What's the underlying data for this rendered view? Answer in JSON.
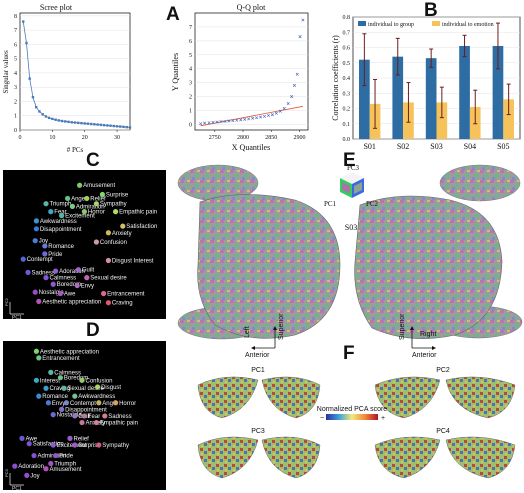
{
  "panels": {
    "A": "A",
    "B": "B",
    "C": "C",
    "D": "D",
    "E": "E",
    "F": "F"
  },
  "chart_data": [
    {
      "id": "scree",
      "type": "line",
      "title": "Scree plot",
      "xlabel": "# PCs",
      "ylabel": "Singular values",
      "xlim": [
        0,
        34
      ],
      "ylim": [
        0,
        8.2
      ],
      "xticks": [
        "0",
        "10",
        "20",
        "30"
      ],
      "xtick_values": [
        0,
        10,
        20,
        30
      ],
      "yticks": [
        "0",
        "1",
        "2",
        "3",
        "4",
        "5",
        "6",
        "7",
        "8"
      ],
      "ytick_values": [
        0,
        1,
        2,
        3,
        4,
        5,
        6,
        7,
        8
      ],
      "x": [
        1,
        2,
        3,
        4,
        5,
        6,
        7,
        8,
        9,
        10,
        11,
        12,
        13,
        14,
        15,
        16,
        17,
        18,
        19,
        20,
        21,
        22,
        23,
        24,
        25,
        26,
        27,
        28,
        29,
        30,
        31,
        32,
        33,
        34
      ],
      "values": [
        7.6,
        6.1,
        3.6,
        2.3,
        1.6,
        1.3,
        1.1,
        0.95,
        0.85,
        0.78,
        0.72,
        0.67,
        0.63,
        0.6,
        0.57,
        0.54,
        0.52,
        0.5,
        0.48,
        0.46,
        0.44,
        0.42,
        0.4,
        0.38,
        0.36,
        0.34,
        0.32,
        0.3,
        0.28,
        0.26,
        0.24,
        0.22,
        0.2,
        0.18
      ]
    },
    {
      "id": "qq",
      "type": "scatter",
      "title": "Q-Q plot",
      "xlabel": "X Quantiles",
      "ylabel": "Y Quantiles",
      "xlim": [
        2715,
        2915
      ],
      "ylim": [
        -0.4,
        8.0
      ],
      "xticks": [
        "2750",
        "2800",
        "2850",
        "2900"
      ],
      "xtick_values": [
        2750,
        2800,
        2850,
        2900
      ],
      "yticks": [
        "0",
        "1",
        "2",
        "3",
        "4",
        "5",
        "6",
        "7"
      ],
      "ytick_values": [
        0,
        1,
        2,
        3,
        4,
        5,
        6,
        7
      ],
      "x": [
        2725,
        2732,
        2740,
        2747,
        2754,
        2761,
        2768,
        2775,
        2782,
        2789,
        2796,
        2803,
        2810,
        2817,
        2824,
        2831,
        2838,
        2845,
        2852,
        2859,
        2866,
        2873,
        2880,
        2886,
        2891,
        2896,
        2901,
        2906
      ],
      "y": [
        0.05,
        0.1,
        0.12,
        0.15,
        0.17,
        0.2,
        0.22,
        0.25,
        0.27,
        0.3,
        0.33,
        0.36,
        0.4,
        0.44,
        0.48,
        0.53,
        0.58,
        0.64,
        0.7,
        0.8,
        0.95,
        1.15,
        1.5,
        2.0,
        2.8,
        3.6,
        6.3,
        7.5
      ],
      "ref_line": {
        "x": [
          2725,
          2906
        ],
        "y": [
          -0.1,
          1.3
        ]
      }
    },
    {
      "id": "corr",
      "type": "bar",
      "categories": [
        "S01",
        "S02",
        "S03",
        "S04",
        "S05"
      ],
      "ylabel": "Correlation coefficients (r)",
      "ylim": [
        0,
        0.8
      ],
      "yticks": [
        "0.0",
        "0.1",
        "0.2",
        "0.3",
        "0.4",
        "0.5",
        "0.6",
        "0.7",
        "0.8"
      ],
      "ytick_values": [
        0,
        0.1,
        0.2,
        0.3,
        0.4,
        0.5,
        0.6,
        0.7,
        0.8
      ],
      "legend_position": "top",
      "series": [
        {
          "name": "individual to group",
          "values": [
            0.52,
            0.54,
            0.53,
            0.61,
            0.61
          ],
          "err": [
            0.17,
            0.12,
            0.06,
            0.07,
            0.15
          ],
          "color": "#2e6da4"
        },
        {
          "name": "individual to emotion",
          "values": [
            0.23,
            0.24,
            0.24,
            0.21,
            0.26
          ],
          "err": [
            0.16,
            0.13,
            0.1,
            0.11,
            0.1
          ],
          "color": "#f5c35a"
        }
      ]
    },
    {
      "id": "emoC",
      "type": "scatter",
      "background": "#000000",
      "x_axis_label": "PC1",
      "y_axis_label": "PC2",
      "points": [
        {
          "label": "Amusement",
          "x": 0.58,
          "y": 0.93,
          "color": "#7ec96a"
        },
        {
          "label": "Surprise",
          "x": 0.77,
          "y": 0.86,
          "color": "#84d86a"
        },
        {
          "label": "Anger",
          "x": 0.48,
          "y": 0.83,
          "color": "#66c08c"
        },
        {
          "label": "Relief",
          "x": 0.64,
          "y": 0.83,
          "color": "#9ed25a"
        },
        {
          "label": "Triumph",
          "x": 0.3,
          "y": 0.79,
          "color": "#58b8a8"
        },
        {
          "label": "Admiration",
          "x": 0.52,
          "y": 0.77,
          "color": "#7acb88"
        },
        {
          "label": "Sympathy",
          "x": 0.72,
          "y": 0.79,
          "color": "#a8d46a"
        },
        {
          "label": "Fear",
          "x": 0.34,
          "y": 0.73,
          "color": "#3fa8c8"
        },
        {
          "label": "Excitement",
          "x": 0.43,
          "y": 0.7,
          "color": "#52b8a6"
        },
        {
          "label": "Horror",
          "x": 0.62,
          "y": 0.73,
          "color": "#8fc86a"
        },
        {
          "label": "Empathic pain",
          "x": 0.88,
          "y": 0.73,
          "color": "#b7d66a"
        },
        {
          "label": "Awkwardness",
          "x": 0.22,
          "y": 0.66,
          "color": "#3a96d0"
        },
        {
          "label": "Disappointment",
          "x": 0.22,
          "y": 0.6,
          "color": "#3a7ad8"
        },
        {
          "label": "Anxiety",
          "x": 0.82,
          "y": 0.57,
          "color": "#d1b85e"
        },
        {
          "label": "Satisfaction",
          "x": 0.94,
          "y": 0.62,
          "color": "#d2c164"
        },
        {
          "label": "Joy",
          "x": 0.21,
          "y": 0.51,
          "color": "#4a7ed8"
        },
        {
          "label": "Romance",
          "x": 0.29,
          "y": 0.47,
          "color": "#6a7ad8"
        },
        {
          "label": "Confusion",
          "x": 0.72,
          "y": 0.5,
          "color": "#d098b0"
        },
        {
          "label": "Pride",
          "x": 0.29,
          "y": 0.41,
          "color": "#6c6cd6"
        },
        {
          "label": "Contempt",
          "x": 0.11,
          "y": 0.37,
          "color": "#5366d6"
        },
        {
          "label": "Disgust Interest",
          "x": 0.82,
          "y": 0.36,
          "color": "#d58ea4"
        },
        {
          "label": "Sadness",
          "x": 0.15,
          "y": 0.27,
          "color": "#6b5ad8"
        },
        {
          "label": "Adoration",
          "x": 0.38,
          "y": 0.28,
          "color": "#8c60d4"
        },
        {
          "label": "Guilt",
          "x": 0.57,
          "y": 0.29,
          "color": "#a26ac8"
        },
        {
          "label": "Calmness",
          "x": 0.3,
          "y": 0.23,
          "color": "#8458d4"
        },
        {
          "label": "Sexual desire",
          "x": 0.64,
          "y": 0.23,
          "color": "#c067b8"
        },
        {
          "label": "Boredom",
          "x": 0.36,
          "y": 0.18,
          "color": "#9256d0"
        },
        {
          "label": "Envy",
          "x": 0.56,
          "y": 0.17,
          "color": "#b06cc2"
        },
        {
          "label": "Nostalgia",
          "x": 0.21,
          "y": 0.12,
          "color": "#9450c6"
        },
        {
          "label": "Awe",
          "x": 0.42,
          "y": 0.11,
          "color": "#a558c4"
        },
        {
          "label": "Entrancement",
          "x": 0.78,
          "y": 0.11,
          "color": "#d86a8a"
        },
        {
          "label": "Aesthetic appreciation",
          "x": 0.24,
          "y": 0.05,
          "color": "#b454b4"
        },
        {
          "label": "Craving",
          "x": 0.82,
          "y": 0.04,
          "color": "#e05a6a"
        }
      ]
    },
    {
      "id": "emoD",
      "type": "scatter",
      "background": "#000000",
      "x_axis_label": "PC1",
      "y_axis_label": "PC3",
      "points": [
        {
          "label": "Aesthetic appreciation",
          "x": 0.22,
          "y": 0.96,
          "color": "#7fd36a"
        },
        {
          "label": "Entrancement",
          "x": 0.24,
          "y": 0.91,
          "color": "#66c98a"
        },
        {
          "label": "Calmness",
          "x": 0.34,
          "y": 0.8,
          "color": "#54b8a8"
        },
        {
          "label": "Interest",
          "x": 0.22,
          "y": 0.74,
          "color": "#3aa8c6"
        },
        {
          "label": "Boredom",
          "x": 0.42,
          "y": 0.76,
          "color": "#6cc48c"
        },
        {
          "label": "Confusion",
          "x": 0.6,
          "y": 0.74,
          "color": "#92cc6a"
        },
        {
          "label": "Craving",
          "x": 0.3,
          "y": 0.68,
          "color": "#3d9ccc"
        },
        {
          "label": "Sexual desire",
          "x": 0.45,
          "y": 0.68,
          "color": "#5fb8a6"
        },
        {
          "label": "Disgust",
          "x": 0.73,
          "y": 0.69,
          "color": "#a8d26a"
        },
        {
          "label": "Romance",
          "x": 0.24,
          "y": 0.62,
          "color": "#3f8ad4"
        },
        {
          "label": "Awkwardness",
          "x": 0.54,
          "y": 0.62,
          "color": "#7cbc92"
        },
        {
          "label": "Envy",
          "x": 0.32,
          "y": 0.57,
          "color": "#4e78d6"
        },
        {
          "label": "Contempt",
          "x": 0.47,
          "y": 0.57,
          "color": "#7a88c6"
        },
        {
          "label": "Anger",
          "x": 0.74,
          "y": 0.57,
          "color": "#c2b266"
        },
        {
          "label": "Horror",
          "x": 0.88,
          "y": 0.57,
          "color": "#d4a068"
        },
        {
          "label": "Disappointment",
          "x": 0.43,
          "y": 0.52,
          "color": "#8074cc"
        },
        {
          "label": "Nostalgia",
          "x": 0.36,
          "y": 0.48,
          "color": "#6a6ad6"
        },
        {
          "label": "Guilt",
          "x": 0.54,
          "y": 0.47,
          "color": "#9a74c6"
        },
        {
          "label": "Fear",
          "x": 0.62,
          "y": 0.47,
          "color": "#b8789c"
        },
        {
          "label": "Anxiety",
          "x": 0.6,
          "y": 0.42,
          "color": "#c07aa0"
        },
        {
          "label": "Sadness",
          "x": 0.79,
          "y": 0.47,
          "color": "#d67c92"
        },
        {
          "label": "Empathic pain",
          "x": 0.72,
          "y": 0.42,
          "color": "#d48096"
        },
        {
          "label": "Awe",
          "x": 0.1,
          "y": 0.3,
          "color": "#6a58d8"
        },
        {
          "label": "Relief",
          "x": 0.5,
          "y": 0.3,
          "color": "#9c5acc"
        },
        {
          "label": "Satisfaction",
          "x": 0.16,
          "y": 0.26,
          "color": "#7a56d6"
        },
        {
          "label": "Excitement",
          "x": 0.36,
          "y": 0.25,
          "color": "#8c5ad2"
        },
        {
          "label": "Surprise",
          "x": 0.54,
          "y": 0.25,
          "color": "#a858c6"
        },
        {
          "label": "Sympathy",
          "x": 0.74,
          "y": 0.25,
          "color": "#d45a7c"
        },
        {
          "label": "Admiration",
          "x": 0.2,
          "y": 0.17,
          "color": "#8452d2"
        },
        {
          "label": "Pride",
          "x": 0.38,
          "y": 0.17,
          "color": "#9a54c8"
        },
        {
          "label": "Adoration",
          "x": 0.04,
          "y": 0.09,
          "color": "#8c4ece"
        },
        {
          "label": "Triumph",
          "x": 0.34,
          "y": 0.11,
          "color": "#a652c2"
        },
        {
          "label": "Amusement",
          "x": 0.3,
          "y": 0.07,
          "color": "#b44cba"
        },
        {
          "label": "Joy",
          "x": 0.14,
          "y": 0.02,
          "color": "#9a4cc8"
        }
      ]
    }
  ],
  "brain": {
    "subject": "S03",
    "cube_labels": {
      "pc1": "PC1",
      "pc2": "PC2",
      "pc3": "PC3"
    },
    "orient_left": {
      "left": "Left",
      "anterior": "Anterior",
      "superior": "Superior"
    },
    "orient_right": {
      "right": "Right",
      "anterior": "Anterior",
      "superior": "Superior"
    },
    "pc_maps": [
      "PC1",
      "PC2",
      "PC3",
      "PC4"
    ],
    "colorbar_title": "Normalized PCA score",
    "colorbar_min": "−",
    "colorbar_max": "+"
  }
}
